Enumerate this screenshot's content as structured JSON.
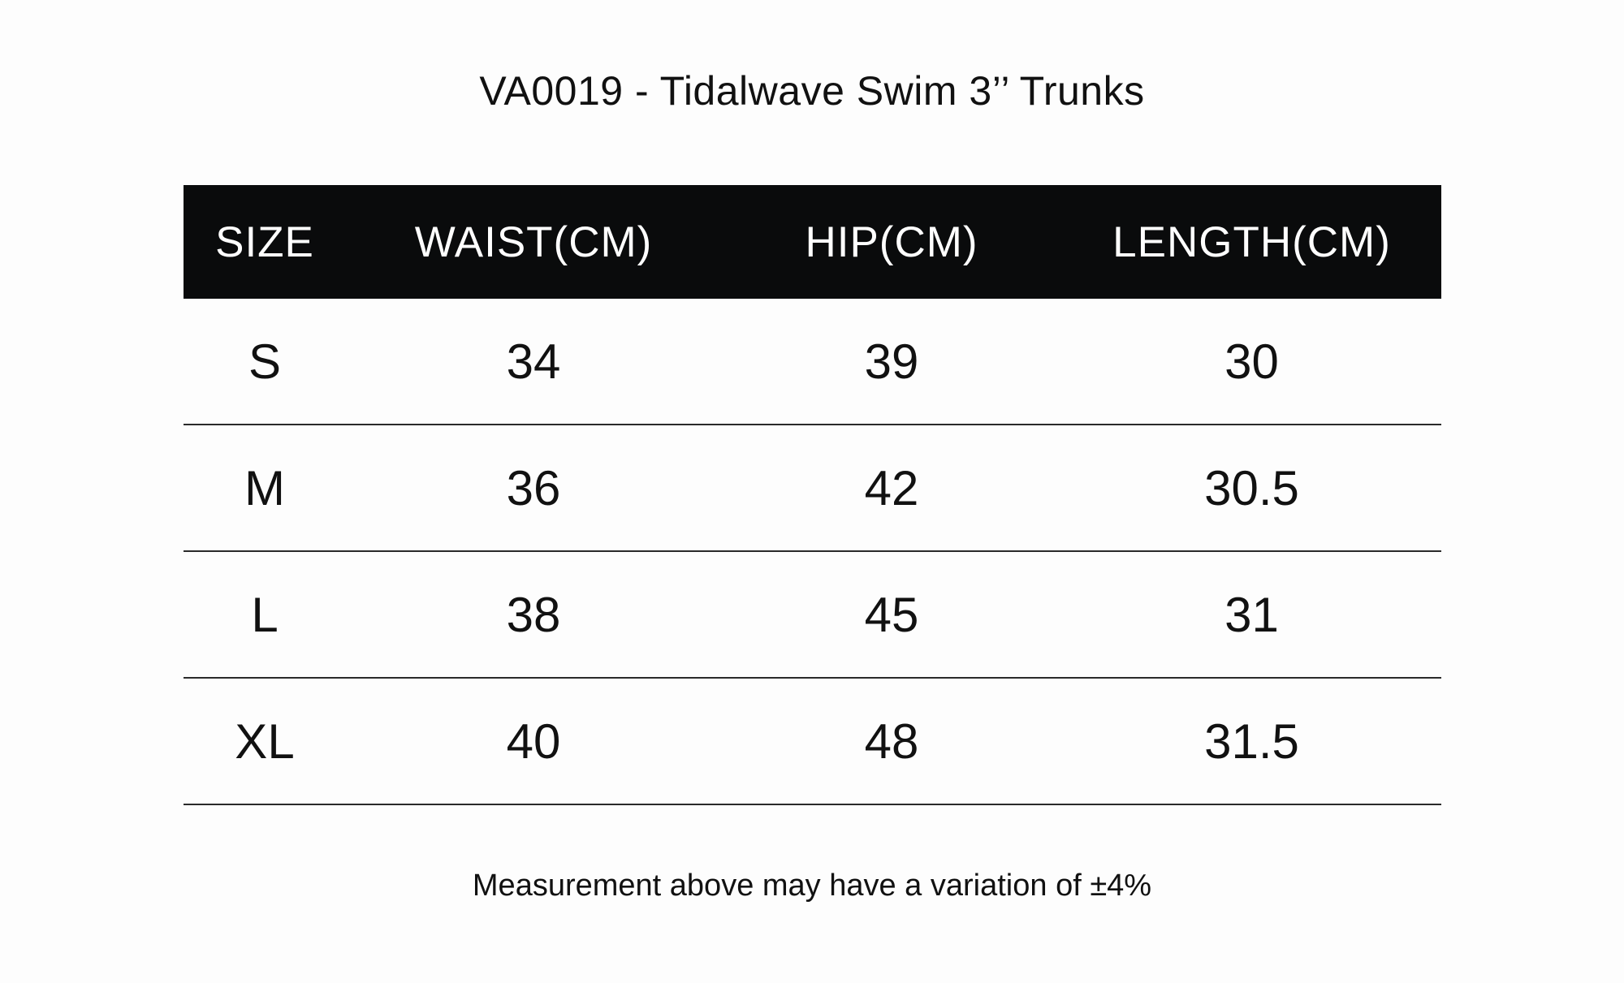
{
  "title": "VA0019 - Tidalwave Swim 3’’ Trunks",
  "table": {
    "headers": [
      "SIZE",
      "WAIST(CM)",
      "HIP(CM)",
      "LENGTH(CM)"
    ],
    "rows": [
      [
        "S",
        "34",
        "39",
        "30"
      ],
      [
        "M",
        "36",
        "42",
        "30.5"
      ],
      [
        "L",
        "38",
        "45",
        "31"
      ],
      [
        "XL",
        "40",
        "48",
        "31.5"
      ]
    ]
  },
  "note": "Measurement above may have a variation of ±4%",
  "colors": {
    "header_background": "#0a0b0c",
    "header_text": "#ffffff",
    "text": "#111111",
    "background": "#fdfdfd"
  }
}
